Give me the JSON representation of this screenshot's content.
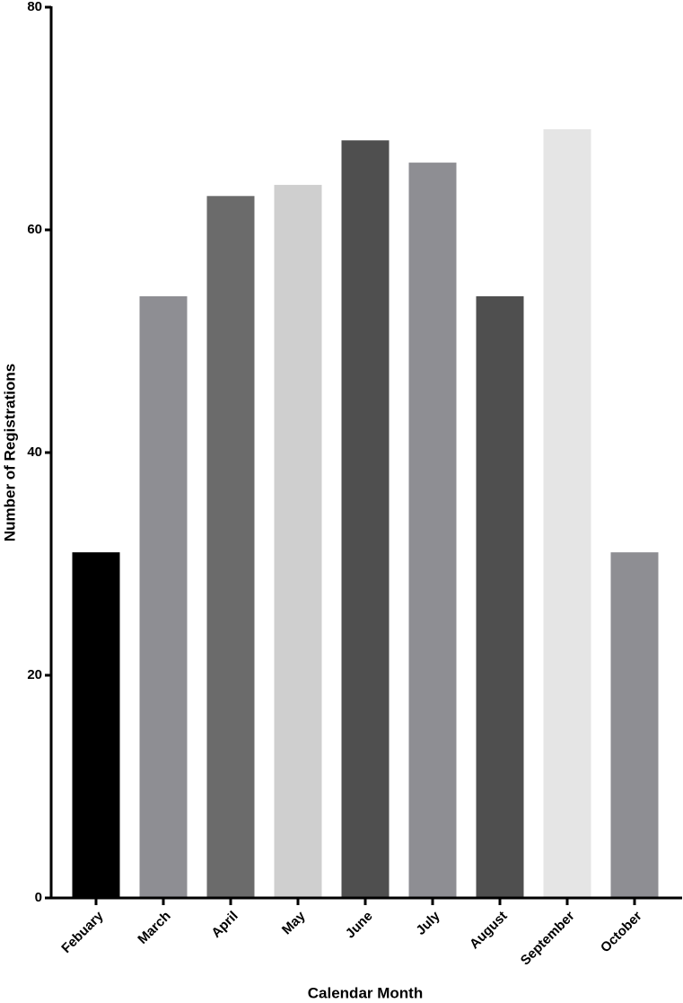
{
  "chart_data": {
    "type": "bar",
    "x_label": "Calendar Month",
    "y_label": "Number of Registrations",
    "categories": [
      "Febuary",
      "March",
      "April",
      "May",
      "June",
      "July",
      "August",
      "September",
      "October"
    ],
    "values": [
      31,
      54,
      63,
      64,
      68,
      66,
      54,
      69,
      31
    ],
    "colors": [
      "#000000",
      "#8e8e93",
      "#6b6b6b",
      "#cfcfcf",
      "#4f4f4f",
      "#8e8e93",
      "#4f4f4f",
      "#e5e5e5",
      "#8e8e93"
    ],
    "ylim": [
      0,
      80
    ],
    "yticks": [
      0,
      20,
      40,
      60,
      80
    ],
    "grid": false
  }
}
